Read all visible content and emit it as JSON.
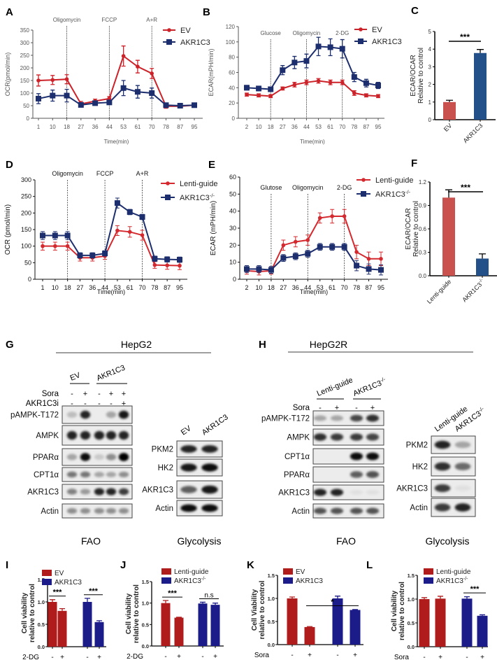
{
  "panel_letters": [
    "A",
    "B",
    "C",
    "D",
    "E",
    "F",
    "G",
    "H",
    "I",
    "J",
    "K",
    "L"
  ],
  "chart_data": [
    {
      "panel": "A",
      "type": "line",
      "ylabel": "OCR(pmol/min)",
      "xlabel": "Time(min)",
      "x": [
        1,
        10,
        18,
        27,
        36,
        44,
        53,
        61,
        70,
        78,
        87,
        95
      ],
      "ylim": [
        0,
        350
      ],
      "yticks": [
        0,
        50,
        100,
        150,
        200,
        250,
        300,
        350
      ],
      "injections": [
        {
          "label": "Oligomycin",
          "at": 18
        },
        {
          "label": "FCCP",
          "at": 44
        },
        {
          "label": "A+R",
          "at": 70
        }
      ],
      "legend": "top-right",
      "series": [
        {
          "name": "EV",
          "color": "#cc2229",
          "marker": "diamond",
          "values": [
            150,
            152,
            155,
            57,
            68,
            78,
            247,
            205,
            178,
            48,
            48,
            52
          ],
          "err": [
            22,
            18,
            18,
            10,
            8,
            8,
            40,
            25,
            20,
            8,
            6,
            5
          ]
        },
        {
          "name": "AKR1C3",
          "color": "#1d2e6e",
          "marker": "square",
          "values": [
            78,
            90,
            90,
            53,
            60,
            63,
            120,
            105,
            100,
            52,
            50,
            52
          ],
          "err": [
            20,
            22,
            25,
            8,
            8,
            8,
            30,
            25,
            20,
            8,
            6,
            5
          ]
        }
      ]
    },
    {
      "panel": "B",
      "type": "line",
      "ylabel": "ECAR(mPH/min)",
      "xlabel": "Time(min)",
      "x": [
        2,
        10,
        18,
        27,
        36,
        44,
        53,
        61,
        70,
        78,
        87,
        95
      ],
      "ylim": [
        0,
        120
      ],
      "yticks": [
        0,
        20,
        40,
        60,
        80,
        100,
        120
      ],
      "injections": [
        {
          "label": "Glucose",
          "at": 18
        },
        {
          "label": "Oligomycin",
          "at": 44
        },
        {
          "label": "2-DG",
          "at": 70
        }
      ],
      "legend": "top-right",
      "series": [
        {
          "name": "EV",
          "color": "#cc2229",
          "marker": "diamond",
          "values": [
            31,
            30,
            29,
            39,
            44,
            47,
            49,
            47,
            47,
            33,
            30,
            29
          ],
          "err": [
            2,
            2,
            2,
            2,
            3,
            3,
            3,
            3,
            3,
            3,
            2,
            2
          ]
        },
        {
          "name": "AKR1C3",
          "color": "#1d2e6e",
          "marker": "square",
          "values": [
            40,
            39,
            38,
            63,
            73,
            75,
            94,
            93,
            91,
            54,
            46,
            43
          ],
          "err": [
            3,
            3,
            3,
            6,
            8,
            9,
            12,
            11,
            12,
            6,
            5,
            4
          ]
        }
      ]
    },
    {
      "panel": "C",
      "type": "bar",
      "ylabel": [
        "ECAR/OCAR",
        "Relative to control"
      ],
      "categories": [
        "EV",
        "AKR1C3"
      ],
      "values": [
        1.0,
        3.78
      ],
      "err": [
        0.1,
        0.2
      ],
      "colors": [
        "#c9524f",
        "#24508a"
      ],
      "ylim": [
        0,
        5
      ],
      "yticks": [
        0,
        1,
        2,
        3,
        4,
        5
      ],
      "significance": "***"
    },
    {
      "panel": "D",
      "type": "line",
      "ylabel": "OCR (pmol/min)",
      "xlabel": "Time(min)",
      "x": [
        1,
        10,
        18,
        27,
        36,
        44,
        53,
        61,
        70,
        78,
        87,
        95
      ],
      "ylim": [
        0,
        300
      ],
      "yticks": [
        0,
        50,
        100,
        150,
        200,
        250,
        300
      ],
      "injections": [
        {
          "label": "Oligomycin",
          "at": 18
        },
        {
          "label": "FCCP",
          "at": 44
        },
        {
          "label": "A+R",
          "at": 70
        }
      ],
      "legend": "top-right",
      "series": [
        {
          "name": "Lenti-guide",
          "color": "#d42a2f",
          "marker": "diamond",
          "values": [
            100,
            100,
            100,
            65,
            65,
            70,
            147,
            143,
            133,
            43,
            42,
            41
          ],
          "err": [
            12,
            12,
            12,
            10,
            10,
            10,
            15,
            16,
            15,
            10,
            12,
            12
          ]
        },
        {
          "name": "AKR1C3",
          "sup": "-/-",
          "color": "#1d2e6e",
          "marker": "square",
          "values": [
            132,
            132,
            132,
            72,
            72,
            78,
            230,
            203,
            188,
            62,
            60,
            59
          ],
          "err": [
            12,
            12,
            12,
            8,
            8,
            8,
            15,
            8,
            8,
            8,
            8,
            8
          ]
        }
      ]
    },
    {
      "panel": "E",
      "type": "line",
      "ylabel": "ECAR (mPH/min)",
      "xlabel": "Time(min)",
      "x": [
        2,
        10,
        18,
        27,
        36,
        44,
        53,
        61,
        70,
        78,
        87,
        95
      ],
      "ylim": [
        0,
        60
      ],
      "yticks": [
        0,
        10,
        20,
        30,
        40,
        50,
        60
      ],
      "injections": [
        {
          "label": "Glutose",
          "at": 18
        },
        {
          "label": "Oligomycin",
          "at": 44
        },
        {
          "label": "2-DG",
          "at": 70
        }
      ],
      "legend": "top-right",
      "series": [
        {
          "name": "Lenti-guide",
          "color": "#d42a2f",
          "marker": "diamond",
          "values": [
            5,
            4.5,
            5,
            20,
            22,
            23,
            36,
            37,
            37,
            16,
            12,
            12
          ],
          "err": [
            2,
            2,
            2,
            3,
            3,
            3,
            3,
            4,
            4,
            4,
            4,
            4
          ]
        },
        {
          "name": "AKR1C3",
          "sup": "-/-",
          "color": "#1d2e6e",
          "marker": "square",
          "values": [
            6,
            6,
            5.5,
            12.5,
            13.5,
            15,
            19,
            19,
            19,
            8,
            6,
            5.5
          ],
          "err": [
            2,
            2,
            2,
            2,
            2,
            2,
            2,
            2,
            2,
            3,
            3,
            3
          ]
        }
      ]
    },
    {
      "panel": "F",
      "type": "bar",
      "ylabel": [
        "ECAR/OCAR",
        "Relative to control"
      ],
      "categories": [
        "Lenti-guide",
        "AKR1C3"
      ],
      "category_sup": [
        "",
        "-/-"
      ],
      "values": [
        1.0,
        0.22
      ],
      "err": [
        0.1,
        0.06
      ],
      "colors": [
        "#c9524f",
        "#24508a"
      ],
      "ylim": [
        0,
        1.2
      ],
      "yticks": [
        0.0,
        0.3,
        0.6,
        0.9,
        1.2
      ],
      "significance": "***"
    },
    {
      "panel": "I",
      "type": "bar",
      "ylabel": [
        "Cell viability",
        "relative to control"
      ],
      "treatment": "2-DG",
      "signs": [
        "-",
        "+",
        "-",
        "+"
      ],
      "ylim": [
        0,
        1.5
      ],
      "yticks": [
        0.0,
        0.5,
        1.0,
        1.5
      ],
      "series": [
        {
          "name": "EV",
          "color": "#b01c1c",
          "values": [
            1.0,
            0.8
          ],
          "err": [
            0.05,
            0.05
          ]
        },
        {
          "name": "AKR1C3",
          "color": "#1b1b8a",
          "values": [
            1.0,
            0.55
          ],
          "err": [
            0.08,
            0.03
          ]
        }
      ],
      "significance": [
        {
          "label": "***",
          "from": 0,
          "to": 1
        },
        {
          "label": "***",
          "from": 2,
          "to": 3
        }
      ]
    },
    {
      "panel": "J",
      "type": "bar",
      "ylabel": [
        "Cell viability",
        "relative to control"
      ],
      "treatment": "2-DG",
      "signs": [
        "-",
        "+",
        "-",
        "+"
      ],
      "ylim": [
        0,
        1.5
      ],
      "yticks": [
        0.0,
        0.5,
        1.0,
        1.5
      ],
      "series": [
        {
          "name": "Lenti-guide",
          "color": "#b01c1c",
          "values": [
            1.0,
            0.66
          ],
          "err": [
            0.06,
            0.01
          ]
        },
        {
          "name": "AKR1C3",
          "sup": "-/-",
          "color": "#1b1b8a",
          "values": [
            0.99,
            0.96
          ],
          "err": [
            0.03,
            0.04
          ]
        }
      ],
      "significance": [
        {
          "label": "***",
          "from": 0,
          "to": 1
        },
        {
          "label": "n.s",
          "from": 2,
          "to": 3
        }
      ]
    },
    {
      "panel": "K",
      "type": "bar",
      "ylabel": [
        "Cell Viability",
        "relative to control"
      ],
      "treatment": "Sora",
      "signs": [
        "-",
        "+",
        "-",
        "+"
      ],
      "ylim": [
        0,
        1.5
      ],
      "yticks": [
        0.0,
        0.5,
        1.0,
        1.5
      ],
      "series": [
        {
          "name": "EV",
          "color": "#b01c1c",
          "values": [
            1.0,
            0.38
          ],
          "err": [
            0.03,
            0.01
          ]
        },
        {
          "name": "AKR1C3",
          "color": "#1b1b8a",
          "values": [
            1.0,
            0.75
          ],
          "err": [
            0.05,
            0.01
          ]
        }
      ],
      "significance": [
        {
          "label": "*",
          "from": 1,
          "to": 3
        }
      ]
    },
    {
      "panel": "L",
      "type": "bar",
      "ylabel": [
        "Cell viability",
        "relative to control"
      ],
      "treatment": "Sora",
      "signs": [
        "-",
        "+",
        "-",
        "+"
      ],
      "ylim": [
        0,
        1.5
      ],
      "yticks": [
        0.0,
        0.5,
        1.0,
        1.5
      ],
      "series": [
        {
          "name": "Lenti-guide",
          "color": "#b01c1c",
          "values": [
            1.0,
            1.01
          ],
          "err": [
            0.03,
            0.05
          ]
        },
        {
          "name": "AKR1C3",
          "sup": "-/-",
          "color": "#1b1b8a",
          "values": [
            1.01,
            0.65
          ],
          "err": [
            0.04,
            0.02
          ]
        }
      ],
      "significance": [
        {
          "label": "***",
          "from": 2,
          "to": 3
        }
      ]
    }
  ],
  "blots": {
    "G": {
      "title": "HepG2",
      "fao": {
        "caption": "FAO",
        "groups": [
          {
            "label": "EV"
          },
          {
            "label": "AKR1C3"
          }
        ],
        "conditions": [
          {
            "name": "Sora",
            "signs": [
              "-",
              "+",
              "-",
              "+",
              "+"
            ]
          },
          {
            "name": "AKR1C3i",
            "signs": [
              "-",
              "-",
              "-",
              "-",
              "+"
            ]
          }
        ],
        "rows": [
          {
            "label": "pAMPK-T172",
            "bands": [
              0.2,
              0.85,
              0,
              0.3,
              0.9
            ]
          },
          {
            "label": "AMPK",
            "bands": [
              0.85,
              0.85,
              0.85,
              0.85,
              0.85
            ]
          },
          {
            "label": "PPARα",
            "bands": [
              0.3,
              0.95,
              0.15,
              0.4,
              1.0
            ]
          },
          {
            "label": "CPT1α",
            "bands": [
              0.5,
              0.5,
              0.3,
              0.3,
              0.4
            ]
          },
          {
            "label": "AKR1C3",
            "bands": [
              0.45,
              0.35,
              0.85,
              0.85,
              0.75
            ]
          },
          {
            "label": "Actin",
            "bands": [
              0.4,
              0.4,
              0.4,
              0.4,
              0.4
            ]
          }
        ]
      },
      "glyco": {
        "caption": "Glycolysis",
        "lanes": [
          "EV",
          "AKR1C3"
        ],
        "rows": [
          {
            "label": "PKM2",
            "bands": [
              0.85,
              0.85
            ]
          },
          {
            "label": "HK2",
            "bands": [
              0.9,
              0.95
            ]
          },
          {
            "label": "AKR1C3",
            "bands": [
              0.6,
              0.9
            ]
          },
          {
            "label": "Actin",
            "bands": [
              0.95,
              0.95
            ]
          }
        ]
      }
    },
    "H": {
      "title": "HepG2R",
      "fao": {
        "caption": "FAO",
        "groups": [
          {
            "label": "Lenti-guide"
          },
          {
            "label": "AKR1C3",
            "sup": "-/-"
          }
        ],
        "conditions": [
          {
            "name": "Sora",
            "signs": [
              "-",
              "+",
              "-",
              "+"
            ]
          }
        ],
        "rows": [
          {
            "label": "pAMPK-T172",
            "bands": [
              0.3,
              0.3,
              0.7,
              0.8
            ]
          },
          {
            "label": "AMPK",
            "bands": [
              0.8,
              0.75,
              0.75,
              0.7
            ]
          },
          {
            "label": "CPT1α",
            "bands": [
              0,
              0,
              0.95,
              0.95
            ]
          },
          {
            "label": "PPARα",
            "bands": [
              0,
              0,
              0.6,
              0.65
            ]
          },
          {
            "label": "AKR1C3",
            "bands": [
              0.85,
              0.85,
              0.05,
              0.05
            ]
          },
          {
            "label": "Actin",
            "bands": [
              0.65,
              0.65,
              0.65,
              0.65
            ]
          }
        ]
      },
      "glyco": {
        "caption": "Glycolysis",
        "lanes": [
          "Lenti-guide",
          "AKR1C3"
        ],
        "lane_sup": [
          "",
          "-/-"
        ],
        "rows": [
          {
            "label": "PKM2",
            "bands": [
              0.85,
              0.3
            ]
          },
          {
            "label": "HK2",
            "bands": [
              0.8,
              0.55
            ]
          },
          {
            "label": "AKR1C3",
            "bands": [
              0.75,
              0.05
            ]
          },
          {
            "label": "Actin",
            "bands": [
              0.75,
              0.85
            ]
          }
        ]
      }
    }
  }
}
